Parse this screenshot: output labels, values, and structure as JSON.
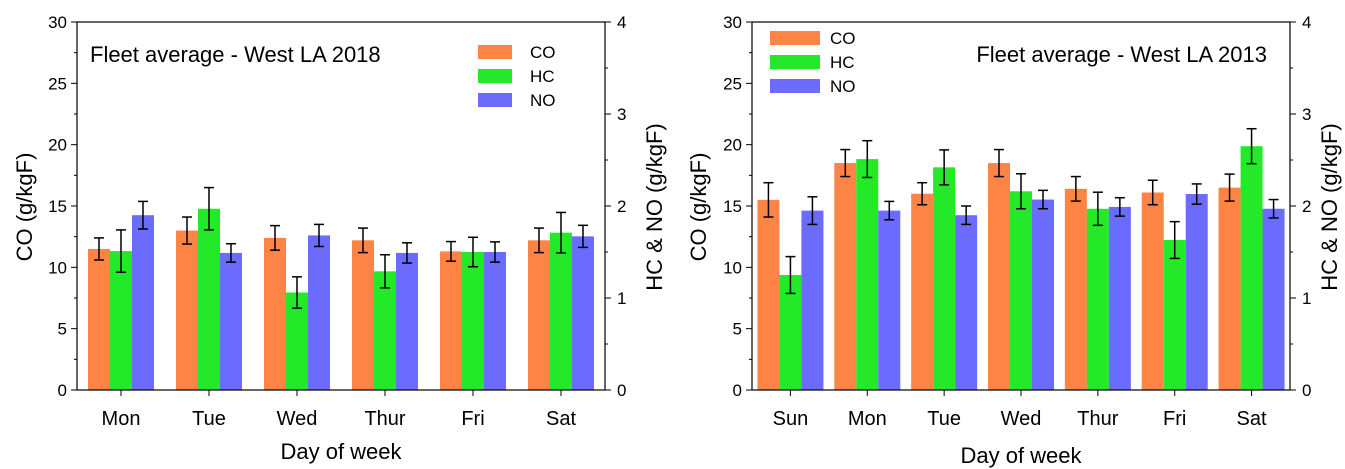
{
  "colors": {
    "CO": "#fd8445",
    "HC": "#24e929",
    "NO": "#6b6bfd",
    "axis": "#000000",
    "errorbar": "#000000"
  },
  "chart_data": [
    {
      "type": "bar",
      "title": "Fleet average - West LA 2018",
      "xlabel": "Day of week",
      "ylabel": "CO (g/kgF)",
      "y2label": "HC & NO (g/kgF)",
      "ylim": [
        0,
        30
      ],
      "y2lim": [
        0,
        4
      ],
      "yticks": [
        "0",
        "5",
        "10",
        "15",
        "20",
        "25",
        "30"
      ],
      "y2ticks": [
        "0",
        "1",
        "2",
        "3",
        "4"
      ],
      "legend_position": "top-right",
      "categories": [
        "Mon",
        "Tue",
        "Wed",
        "Thur",
        "Fri",
        "Sat"
      ],
      "series": [
        {
          "name": "CO",
          "axis": "left",
          "values": [
            11.5,
            13.0,
            12.4,
            12.2,
            11.3,
            12.2
          ],
          "errors": [
            0.9,
            1.1,
            1.0,
            1.0,
            0.8,
            1.0
          ]
        },
        {
          "name": "HC",
          "axis": "right",
          "values": [
            1.51,
            1.97,
            1.06,
            1.29,
            1.5,
            1.71
          ],
          "errors": [
            0.23,
            0.23,
            0.17,
            0.18,
            0.16,
            0.22
          ]
        },
        {
          "name": "NO",
          "axis": "right",
          "values": [
            1.9,
            1.49,
            1.68,
            1.49,
            1.5,
            1.67
          ],
          "errors": [
            0.15,
            0.1,
            0.12,
            0.11,
            0.11,
            0.12
          ]
        }
      ]
    },
    {
      "type": "bar",
      "title": "Fleet average - West LA 2013",
      "xlabel": "Day of week",
      "ylabel": "CO (g/kgF)",
      "y2label": "HC & NO (g/kgF)",
      "ylim": [
        0,
        30
      ],
      "y2lim": [
        0,
        4
      ],
      "yticks": [
        "0",
        "5",
        "10",
        "15",
        "20",
        "25",
        "30"
      ],
      "y2ticks": [
        "0",
        "1",
        "2",
        "3",
        "4"
      ],
      "legend_position": "top-left",
      "categories": [
        "Sun",
        "Mon",
        "Tue",
        "Wed",
        "Thur",
        "Fri",
        "Sat"
      ],
      "series": [
        {
          "name": "CO",
          "axis": "left",
          "values": [
            15.5,
            18.5,
            16.0,
            18.5,
            16.4,
            16.1,
            16.5
          ],
          "errors": [
            1.4,
            1.1,
            0.9,
            1.1,
            1.0,
            1.0,
            1.1
          ]
        },
        {
          "name": "HC",
          "axis": "right",
          "values": [
            1.25,
            2.51,
            2.42,
            2.16,
            1.97,
            1.63,
            2.65
          ],
          "errors": [
            0.2,
            0.2,
            0.19,
            0.19,
            0.18,
            0.2,
            0.19
          ]
        },
        {
          "name": "NO",
          "axis": "right",
          "values": [
            1.95,
            1.95,
            1.9,
            2.07,
            1.99,
            2.13,
            1.97
          ],
          "errors": [
            0.15,
            0.1,
            0.1,
            0.1,
            0.1,
            0.11,
            0.1
          ]
        }
      ]
    }
  ]
}
